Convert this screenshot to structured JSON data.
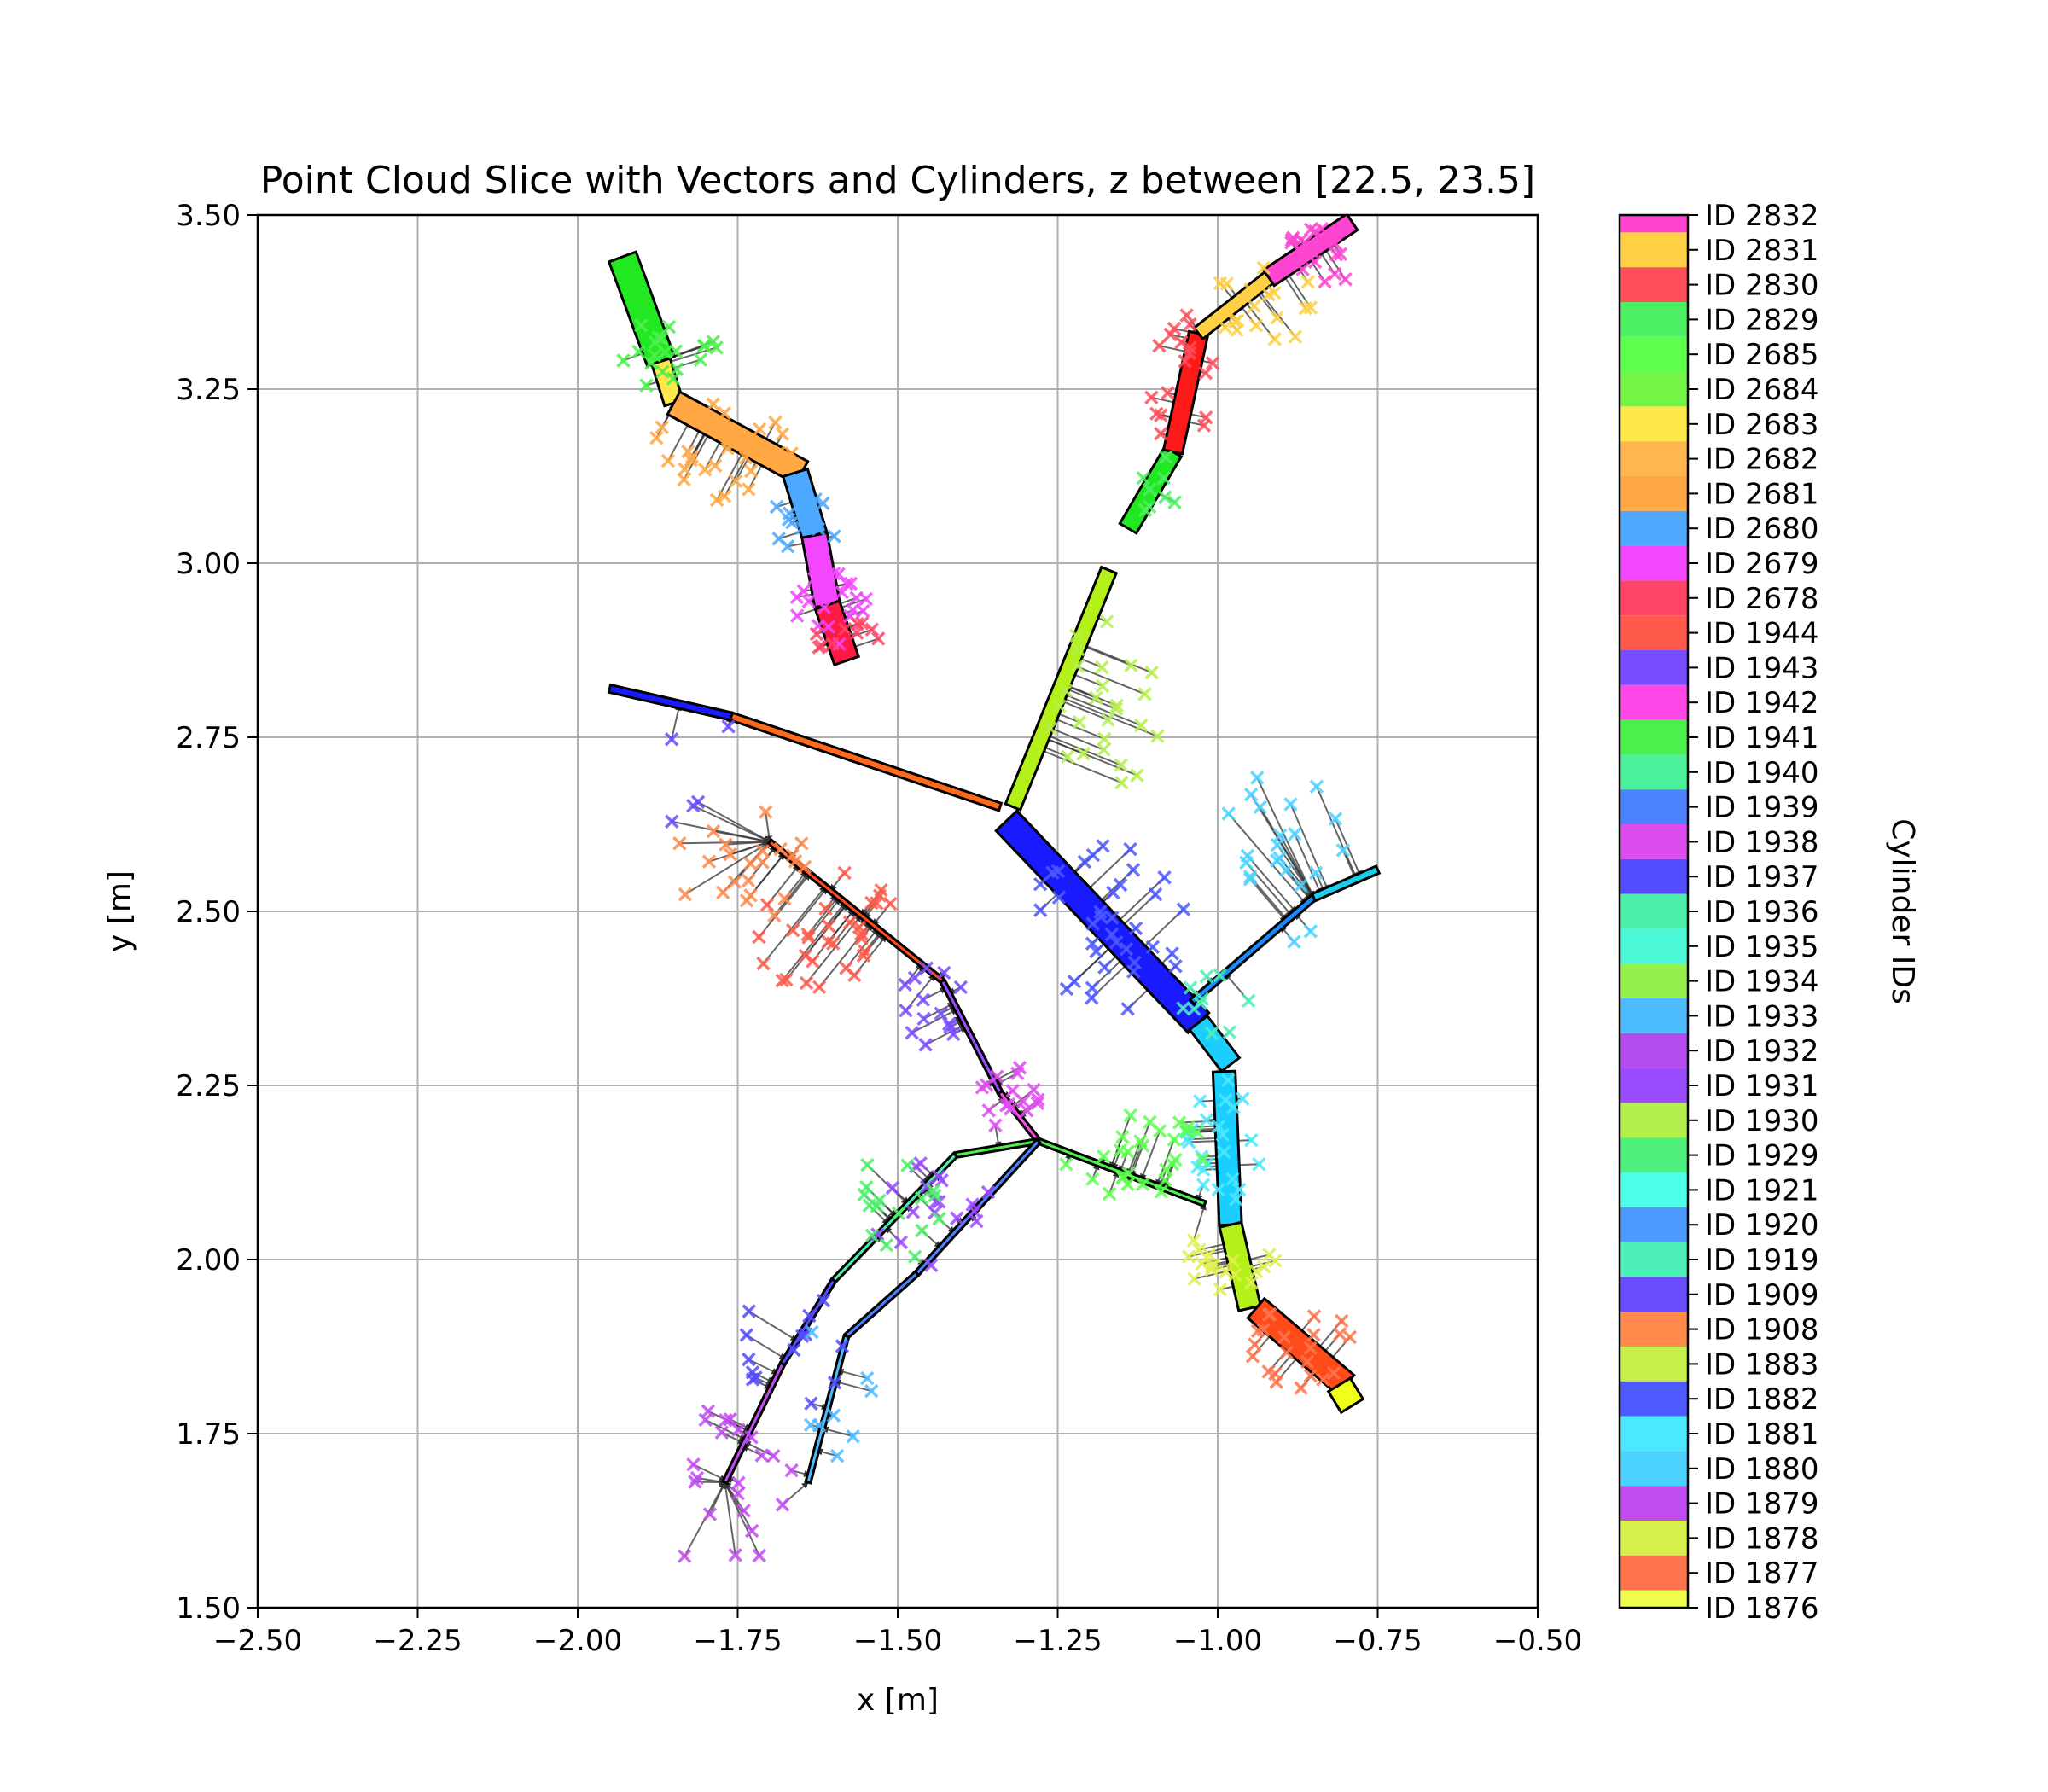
{
  "chart_data": {
    "type": "scatter",
    "title": "Point Cloud Slice with Vectors and Cylinders, z between [22.5, 23.5]",
    "xlabel": "x [m]",
    "ylabel": "y [m]",
    "xlim": [
      -2.5,
      -0.5
    ],
    "ylim": [
      1.5,
      3.5
    ],
    "grid": true,
    "xticks": [
      -2.5,
      -2.25,
      -2.0,
      -1.75,
      -1.5,
      -1.25,
      -1.0,
      -0.75,
      -0.5
    ],
    "xtick_labels": [
      "−2.50",
      "−2.25",
      "−2.00",
      "−1.75",
      "−1.50",
      "−1.25",
      "−1.00",
      "−0.75",
      "−0.50"
    ],
    "yticks": [
      1.5,
      1.75,
      2.0,
      2.25,
      2.5,
      2.75,
      3.0,
      3.25,
      3.5
    ],
    "ytick_labels": [
      "1.50",
      "1.75",
      "2.00",
      "2.25",
      "2.50",
      "2.75",
      "3.00",
      "3.25",
      "3.50"
    ],
    "colorbar": {
      "label": "Cylinder IDs",
      "entries": [
        {
          "id": "ID 2832",
          "color": "#ff44d2"
        },
        {
          "id": "ID 2831",
          "color": "#ffd044"
        },
        {
          "id": "ID 2830",
          "color": "#ff4f5a"
        },
        {
          "id": "ID 2829",
          "color": "#4cf062"
        },
        {
          "id": "ID 2685",
          "color": "#5dff4d"
        },
        {
          "id": "ID 2684",
          "color": "#74f545"
        },
        {
          "id": "ID 2683",
          "color": "#ffe84a"
        },
        {
          "id": "ID 2682",
          "color": "#ffb64e"
        },
        {
          "id": "ID 2681",
          "color": "#ffa844"
        },
        {
          "id": "ID 2680",
          "color": "#4ea8ff"
        },
        {
          "id": "ID 2679",
          "color": "#f246ff"
        },
        {
          "id": "ID 2678",
          "color": "#ff4466"
        },
        {
          "id": "ID 1944",
          "color": "#ff5a4c"
        },
        {
          "id": "ID 1943",
          "color": "#7a4cff"
        },
        {
          "id": "ID 1942",
          "color": "#ff46e6"
        },
        {
          "id": "ID 1941",
          "color": "#4cf04c"
        },
        {
          "id": "ID 1940",
          "color": "#4cf09a"
        },
        {
          "id": "ID 1939",
          "color": "#4c82ff"
        },
        {
          "id": "ID 1938",
          "color": "#de4cf0"
        },
        {
          "id": "ID 1937",
          "color": "#544cff"
        },
        {
          "id": "ID 1936",
          "color": "#4cf0a8"
        },
        {
          "id": "ID 1935",
          "color": "#4cf7d8"
        },
        {
          "id": "ID 1934",
          "color": "#96f04c"
        },
        {
          "id": "ID 1933",
          "color": "#4cbcff"
        },
        {
          "id": "ID 1932",
          "color": "#b44cf0"
        },
        {
          "id": "ID 1931",
          "color": "#9a4cff"
        },
        {
          "id": "ID 1930",
          "color": "#b4f04c"
        },
        {
          "id": "ID 1929",
          "color": "#4cf07a"
        },
        {
          "id": "ID 1921",
          "color": "#4cffe8"
        },
        {
          "id": "ID 1920",
          "color": "#4c9aff"
        },
        {
          "id": "ID 1919",
          "color": "#4cf0b8"
        },
        {
          "id": "ID 1909",
          "color": "#6a4cff"
        },
        {
          "id": "ID 1908",
          "color": "#ff8a4c"
        },
        {
          "id": "ID 1883",
          "color": "#c8f04c"
        },
        {
          "id": "ID 1882",
          "color": "#4c5aff"
        },
        {
          "id": "ID 1881",
          "color": "#4ce8ff"
        },
        {
          "id": "ID 1880",
          "color": "#4cd2ff"
        },
        {
          "id": "ID 1879",
          "color": "#c24cf0"
        },
        {
          "id": "ID 1878",
          "color": "#d8f04c"
        },
        {
          "id": "ID 1877",
          "color": "#ff744c"
        },
        {
          "id": "ID 1876",
          "color": "#f0ff4c"
        }
      ]
    },
    "cylinders": [
      {
        "x1": -1.93,
        "y1": 3.44,
        "x2": -1.87,
        "y2": 3.29,
        "color": "#22e822",
        "width": 0.045
      },
      {
        "x1": -1.87,
        "y1": 3.29,
        "x2": -1.85,
        "y2": 3.23,
        "color": "#ffe84a",
        "width": 0.03
      },
      {
        "x1": -1.85,
        "y1": 3.23,
        "x2": -1.65,
        "y2": 3.13,
        "color": "#ffa844",
        "width": 0.04
      },
      {
        "x1": -1.66,
        "y1": 3.13,
        "x2": -1.63,
        "y2": 3.04,
        "color": "#4ea8ff",
        "width": 0.04
      },
      {
        "x1": -1.63,
        "y1": 3.04,
        "x2": -1.61,
        "y2": 2.94,
        "color": "#f246ff",
        "width": 0.04
      },
      {
        "x1": -1.61,
        "y1": 2.94,
        "x2": -1.58,
        "y2": 2.86,
        "color": "#ff1a44",
        "width": 0.04
      },
      {
        "x1": -1.14,
        "y1": 3.05,
        "x2": -1.07,
        "y2": 3.16,
        "color": "#22e822",
        "width": 0.03
      },
      {
        "x1": -1.07,
        "y1": 3.16,
        "x2": -1.03,
        "y2": 3.33,
        "color": "#ff1a1a",
        "width": 0.03
      },
      {
        "x1": -1.03,
        "y1": 3.33,
        "x2": -0.92,
        "y2": 3.41,
        "color": "#ffd044",
        "width": 0.022
      },
      {
        "x1": -0.92,
        "y1": 3.41,
        "x2": -0.79,
        "y2": 3.49,
        "color": "#ff44d2",
        "width": 0.03
      },
      {
        "x1": -1.95,
        "y1": 2.82,
        "x2": -1.76,
        "y2": 2.78,
        "color": "#1a1aff",
        "width": 0.012
      },
      {
        "x1": -1.76,
        "y1": 2.78,
        "x2": -1.34,
        "y2": 2.65,
        "color": "#ff6a1a",
        "width": 0.012
      },
      {
        "x1": -1.32,
        "y1": 2.65,
        "x2": -1.17,
        "y2": 2.99,
        "color": "#b4f01a",
        "width": 0.025
      },
      {
        "x1": -1.33,
        "y1": 2.63,
        "x2": -1.03,
        "y2": 2.34,
        "color": "#1a1aff",
        "width": 0.045
      },
      {
        "x1": -1.03,
        "y1": 2.34,
        "x2": -0.98,
        "y2": 2.28,
        "color": "#1acfff",
        "width": 0.035
      },
      {
        "x1": -1.04,
        "y1": 2.37,
        "x2": -0.85,
        "y2": 2.52,
        "color": "#1a8aff",
        "width": 0.01
      },
      {
        "x1": -0.85,
        "y1": 2.52,
        "x2": -0.75,
        "y2": 2.56,
        "color": "#1acfe8",
        "width": 0.012
      },
      {
        "x1": -0.99,
        "y1": 2.27,
        "x2": -0.98,
        "y2": 2.05,
        "color": "#1acfff",
        "width": 0.035
      },
      {
        "x1": -0.98,
        "y1": 2.05,
        "x2": -0.95,
        "y2": 1.93,
        "color": "#b4f01a",
        "width": 0.035
      },
      {
        "x1": -0.94,
        "y1": 1.93,
        "x2": -0.8,
        "y2": 1.82,
        "color": "#ff4a1a",
        "width": 0.04
      },
      {
        "x1": -0.81,
        "y1": 1.82,
        "x2": -0.79,
        "y2": 1.79,
        "color": "#f0ff1a",
        "width": 0.04
      },
      {
        "x1": -1.7,
        "y1": 2.6,
        "x2": -1.43,
        "y2": 2.4,
        "color": "#ff4a1a",
        "width": 0.005
      },
      {
        "x1": -1.43,
        "y1": 2.4,
        "x2": -1.34,
        "y2": 2.24,
        "color": "#9a4cff",
        "width": 0.005
      },
      {
        "x1": -1.34,
        "y1": 2.24,
        "x2": -1.28,
        "y2": 2.17,
        "color": "#ff46e6",
        "width": 0.005
      },
      {
        "x1": -1.28,
        "y1": 2.17,
        "x2": -1.02,
        "y2": 2.08,
        "color": "#4cf04c",
        "width": 0.008
      },
      {
        "x1": -1.28,
        "y1": 2.17,
        "x2": -1.41,
        "y2": 2.15,
        "color": "#4cf04c",
        "width": 0.005
      },
      {
        "x1": -1.41,
        "y1": 2.15,
        "x2": -1.6,
        "y2": 1.97,
        "color": "#4cf0a8",
        "width": 0.005
      },
      {
        "x1": -1.6,
        "y1": 1.97,
        "x2": -1.68,
        "y2": 1.85,
        "color": "#544cff",
        "width": 0.005
      },
      {
        "x1": -1.68,
        "y1": 1.85,
        "x2": -1.77,
        "y2": 1.68,
        "color": "#c24cf0",
        "width": 0.005
      },
      {
        "x1": -1.28,
        "y1": 2.17,
        "x2": -1.47,
        "y2": 1.98,
        "color": "#4c82ff",
        "width": 0.005
      },
      {
        "x1": -1.47,
        "y1": 1.98,
        "x2": -1.58,
        "y2": 1.89,
        "color": "#4c82ff",
        "width": 0.005
      },
      {
        "x1": -1.58,
        "y1": 1.89,
        "x2": -1.64,
        "y2": 1.68,
        "color": "#4cbcff",
        "width": 0.005
      }
    ],
    "clusters": [
      {
        "cx": -1.86,
        "cy": 3.3,
        "rx": 0.09,
        "ry": 0.05,
        "color": "#4cf04c",
        "n": 20,
        "seed": 11
      },
      {
        "cx": -1.78,
        "cy": 3.16,
        "rx": 0.12,
        "ry": 0.07,
        "color": "#ffa844",
        "n": 28,
        "seed": 12
      },
      {
        "cx": -1.65,
        "cy": 3.06,
        "rx": 0.06,
        "ry": 0.05,
        "color": "#4ea8ff",
        "n": 16,
        "seed": 13
      },
      {
        "cx": -1.6,
        "cy": 2.94,
        "rx": 0.06,
        "ry": 0.06,
        "color": "#f246ff",
        "n": 20,
        "seed": 14
      },
      {
        "cx": -1.58,
        "cy": 2.89,
        "rx": 0.05,
        "ry": 0.03,
        "color": "#ff4466",
        "n": 10,
        "seed": 15
      },
      {
        "cx": -1.05,
        "cy": 3.26,
        "rx": 0.06,
        "ry": 0.1,
        "color": "#ff4f5a",
        "n": 18,
        "seed": 16
      },
      {
        "cx": -0.93,
        "cy": 3.37,
        "rx": 0.09,
        "ry": 0.06,
        "color": "#ffd044",
        "n": 18,
        "seed": 17
      },
      {
        "cx": -0.83,
        "cy": 3.45,
        "rx": 0.07,
        "ry": 0.05,
        "color": "#ff44d2",
        "n": 18,
        "seed": 18
      },
      {
        "cx": -1.09,
        "cy": 3.11,
        "rx": 0.04,
        "ry": 0.05,
        "color": "#4cf062",
        "n": 8,
        "seed": 19
      },
      {
        "cx": -1.18,
        "cy": 2.8,
        "rx": 0.1,
        "ry": 0.13,
        "color": "#b4f04c",
        "n": 26,
        "seed": 20
      },
      {
        "cx": -1.75,
        "cy": 2.58,
        "rx": 0.12,
        "ry": 0.1,
        "color": "#ff8a4c",
        "n": 22,
        "seed": 21
      },
      {
        "cx": -1.62,
        "cy": 2.47,
        "rx": 0.13,
        "ry": 0.09,
        "color": "#ff5a4c",
        "n": 30,
        "seed": 22
      },
      {
        "cx": -1.81,
        "cy": 2.7,
        "rx": 0.07,
        "ry": 0.12,
        "color": "#6a4cff",
        "n": 5,
        "seed": 23
      },
      {
        "cx": -1.16,
        "cy": 2.48,
        "rx": 0.14,
        "ry": 0.13,
        "color": "#4c5aff",
        "n": 36,
        "seed": 24
      },
      {
        "cx": -0.9,
        "cy": 2.58,
        "rx": 0.1,
        "ry": 0.13,
        "color": "#4cd2ff",
        "n": 22,
        "seed": 25
      },
      {
        "cx": -1.0,
        "cy": 2.37,
        "rx": 0.06,
        "ry": 0.05,
        "color": "#4cf0b8",
        "n": 10,
        "seed": 26
      },
      {
        "cx": -0.99,
        "cy": 2.17,
        "rx": 0.06,
        "ry": 0.09,
        "color": "#4ce8ff",
        "n": 24,
        "seed": 27
      },
      {
        "cx": -0.98,
        "cy": 2.0,
        "rx": 0.07,
        "ry": 0.05,
        "color": "#e0f04c",
        "n": 18,
        "seed": 28
      },
      {
        "cx": -0.87,
        "cy": 1.87,
        "rx": 0.1,
        "ry": 0.06,
        "color": "#ff744c",
        "n": 22,
        "seed": 29
      },
      {
        "cx": -1.45,
        "cy": 2.36,
        "rx": 0.06,
        "ry": 0.06,
        "color": "#7a4cff",
        "n": 14,
        "seed": 30
      },
      {
        "cx": -1.33,
        "cy": 2.23,
        "rx": 0.06,
        "ry": 0.05,
        "color": "#de4cf0",
        "n": 16,
        "seed": 31
      },
      {
        "cx": -1.13,
        "cy": 2.15,
        "rx": 0.12,
        "ry": 0.06,
        "color": "#5dff4d",
        "n": 28,
        "seed": 32
      },
      {
        "cx": -1.45,
        "cy": 2.07,
        "rx": 0.1,
        "ry": 0.09,
        "color": "#9a4cff",
        "n": 18,
        "seed": 33
      },
      {
        "cx": -1.53,
        "cy": 2.07,
        "rx": 0.1,
        "ry": 0.09,
        "color": "#4cf06a",
        "n": 16,
        "seed": 34
      },
      {
        "cx": -1.67,
        "cy": 1.87,
        "rx": 0.09,
        "ry": 0.09,
        "color": "#544cff",
        "n": 14,
        "seed": 35
      },
      {
        "cx": -1.77,
        "cy": 1.68,
        "rx": 0.11,
        "ry": 0.13,
        "color": "#c24cf0",
        "n": 22,
        "seed": 36
      },
      {
        "cx": -1.6,
        "cy": 1.8,
        "rx": 0.06,
        "ry": 0.12,
        "color": "#4cbcff",
        "n": 8,
        "seed": 37
      }
    ]
  }
}
